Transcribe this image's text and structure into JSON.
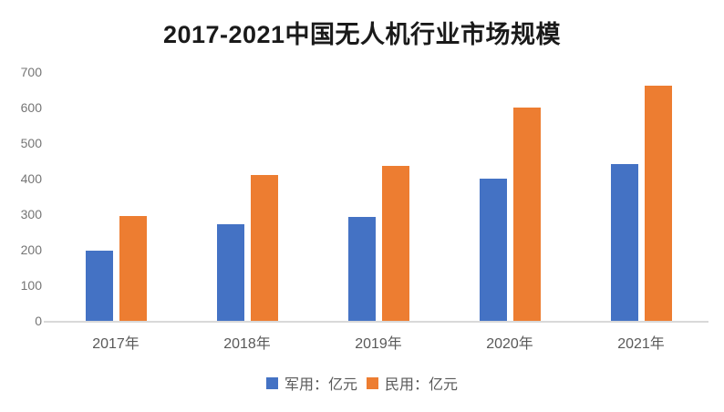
{
  "chart_data": {
    "type": "bar",
    "title": "2017-2021中国无人机行业市场规模",
    "categories": [
      "2017年",
      "2018年",
      "2019年",
      "2020年",
      "2021年"
    ],
    "series": [
      {
        "key": "military",
        "name": "军用：亿元",
        "color": "#4472C4",
        "values": [
          198,
          273,
          292,
          400,
          440
        ]
      },
      {
        "key": "civilian",
        "name": "民用：亿元",
        "color": "#ED7D31",
        "values": [
          295,
          410,
          436,
          600,
          662
        ]
      }
    ],
    "xlabel": "",
    "ylabel": "",
    "ylim": [
      0,
      700
    ],
    "yticks": [
      0,
      100,
      200,
      300,
      400,
      500,
      600,
      700
    ],
    "grid": false,
    "legend_position": "bottom",
    "colors": {
      "axis_line": "#d9d9d9",
      "tick_label": "#757575",
      "category_label": "#595959",
      "title": "#1a1a1a",
      "background": "#ffffff"
    }
  }
}
